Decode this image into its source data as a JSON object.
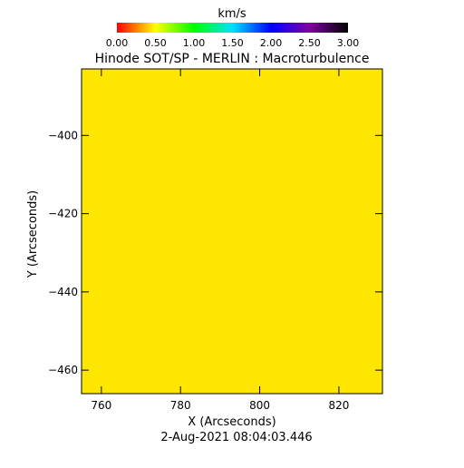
{
  "colorbar": {
    "unit_label": "km/s",
    "tick_labels": [
      "0.00",
      "0.50",
      "1.00",
      "1.50",
      "2.00",
      "2.50",
      "3.00"
    ],
    "range": [
      0,
      3.0
    ],
    "colormap_stops": [
      "#ff0000",
      "#ffff00",
      "#00ff00",
      "#00e0ff",
      "#0000ff",
      "#8000a0",
      "#000000"
    ]
  },
  "footer": {
    "timestamp": "2-Aug-2021 08:04:03.446"
  },
  "chart_data": {
    "type": "heatmap",
    "title": "Hinode SOT/SP - MERLIN : Macroturbulence",
    "xlabel": "X (Arcseconds)",
    "ylabel": "Y (Arcseconds)",
    "xlim": [
      755,
      831
    ],
    "ylim": [
      -466,
      -383
    ],
    "x_ticks": [
      760,
      780,
      800,
      820
    ],
    "y_ticks": [
      -460,
      -440,
      -420,
      -400
    ],
    "x_tick_labels": [
      "760",
      "780",
      "800",
      "820"
    ],
    "y_tick_labels": [
      "−460",
      "−440",
      "−420",
      "−400"
    ],
    "value_range": [
      0,
      3.0
    ],
    "uniform_value_kms": 1.0,
    "fill_color": "#ffe600"
  }
}
